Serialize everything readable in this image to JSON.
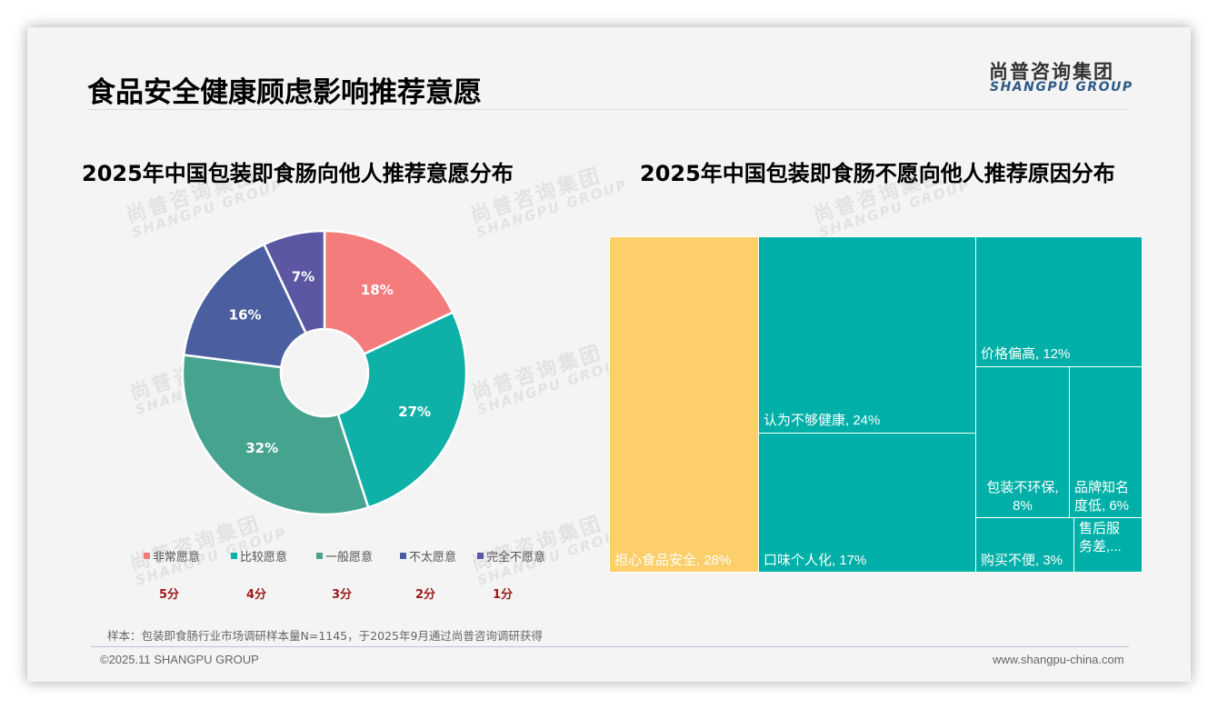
{
  "header": {
    "title": "食品安全健康顾虑影响推荐意愿",
    "logo_cn": "尚普咨询集团",
    "logo_en": "SHANGPU GROUP"
  },
  "watermark": {
    "cn": "尚普咨询集团",
    "en": "SHANGPU GROUP"
  },
  "left_chart": {
    "title": "2025年中国包装即食肠向他人推荐意愿分布",
    "legend": [
      {
        "label": "非常愿意",
        "color": "#f47c7c",
        "score": "5分"
      },
      {
        "label": "比较愿意",
        "color": "#0fb0a7",
        "score": "4分"
      },
      {
        "label": "一般愿意",
        "color": "#46a38f",
        "score": "3分"
      },
      {
        "label": "不太愿意",
        "color": "#4b5fa0",
        "score": "2分"
      },
      {
        "label": "完全不愿意",
        "color": "#5b57a3",
        "score": "1分"
      }
    ],
    "slice_labels": [
      "18%",
      "27%",
      "32%",
      "16%",
      "7%"
    ]
  },
  "right_chart": {
    "title": "2025年中国包装即食肠不愿向他人推荐原因分布",
    "cells": [
      {
        "label": "担心食品安全, 28%"
      },
      {
        "label": "认为不够健康, 24%"
      },
      {
        "label": "口味个人化, 17%"
      },
      {
        "label": "价格偏高, 12%"
      },
      {
        "label": "包装不环保,",
        "label2": "8%"
      },
      {
        "label": "品牌知名",
        "label2": "度低, 6%"
      },
      {
        "label": "购买不便, 3%"
      },
      {
        "label": "售后服",
        "label2": "务差,..."
      }
    ]
  },
  "footer": {
    "note": "样本：包装即食肠行业市场调研样本量N=1145，于2025年9月通过尚普咨询调研获得",
    "copyright": "©2025.11 SHANGPU GROUP",
    "website": "www.shangpu-china.com"
  },
  "chart_data": [
    {
      "type": "pie",
      "title": "2025年中国包装即食肠向他人推荐意愿分布",
      "donut": true,
      "categories": [
        "非常愿意",
        "比较愿意",
        "一般愿意",
        "不太愿意",
        "完全不愿意"
      ],
      "scores": [
        "5分",
        "4分",
        "3分",
        "2分",
        "1分"
      ],
      "values": [
        18,
        27,
        32,
        16,
        7
      ],
      "unit": "%",
      "colors": [
        "#f47c7c",
        "#0fb0a7",
        "#46a38f",
        "#4b5fa0",
        "#5b57a3"
      ],
      "legend_position": "bottom"
    },
    {
      "type": "treemap",
      "title": "2025年中国包装即食肠不愿向他人推荐原因分布",
      "categories": [
        "担心食品安全",
        "认为不够健康",
        "口味个人化",
        "价格偏高",
        "包装不环保",
        "品牌知名度低",
        "购买不便",
        "售后服务差"
      ],
      "values": [
        28,
        24,
        17,
        12,
        8,
        6,
        3,
        2
      ],
      "unit": "%",
      "colors": [
        "#fdcf6a",
        "#00b0a8",
        "#00b0a8",
        "#00b0a8",
        "#00b0a8",
        "#00b0a8",
        "#00b0a8",
        "#00b0a8"
      ],
      "note": "售后服务差 value truncated in label ('务差,...'); estimated from area"
    }
  ]
}
